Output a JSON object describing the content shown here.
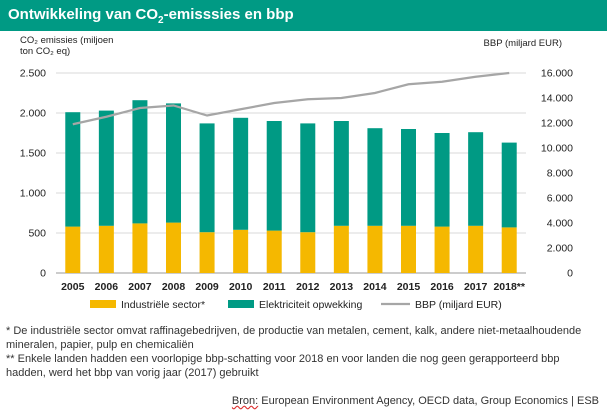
{
  "header": {
    "title_main": "Ontwikkeling van CO",
    "title_sub": "2",
    "title_rest": "-emisssies en bbp"
  },
  "axes": {
    "left_label_line1": "CO₂ emissies (miljoen",
    "left_label_line2": "ton CO₂ eq)",
    "right_label": "BBP (miljard EUR)"
  },
  "chart_data": {
    "type": "bar",
    "stacked": true,
    "categories": [
      "2005",
      "2006",
      "2007",
      "2008",
      "2009",
      "2010",
      "2011",
      "2012",
      "2013",
      "2014",
      "2015",
      "2016",
      "2017",
      "2018**"
    ],
    "series": [
      {
        "name": "Industriële sector*",
        "axis": "left",
        "color": "#f5b800",
        "values": [
          580,
          590,
          620,
          630,
          510,
          540,
          530,
          510,
          590,
          590,
          590,
          580,
          590,
          570
        ]
      },
      {
        "name": "Elektriciteit opwekking",
        "axis": "left",
        "color": "#009a84",
        "values": [
          1430,
          1440,
          1540,
          1490,
          1360,
          1400,
          1370,
          1360,
          1310,
          1220,
          1210,
          1170,
          1170,
          1060
        ]
      },
      {
        "name": "BBP (miljard EUR)",
        "axis": "right",
        "type": "line",
        "color": "#a6a6a6",
        "values": [
          11900,
          12500,
          13200,
          13400,
          12600,
          13100,
          13600,
          13900,
          14000,
          14400,
          15100,
          15300,
          15700,
          16000
        ]
      }
    ],
    "y_left": {
      "min": 0,
      "max": 2500,
      "ticks": [
        0,
        500,
        1000,
        1500,
        2000,
        2500
      ],
      "tick_labels": [
        "0",
        "500",
        "1.000",
        "1.500",
        "2.000",
        "2.500"
      ]
    },
    "y_right": {
      "min": 0,
      "max": 16000,
      "ticks": [
        0,
        2000,
        4000,
        6000,
        8000,
        10000,
        12000,
        14000,
        16000
      ],
      "tick_labels": [
        "0",
        "2.000",
        "4.000",
        "6.000",
        "8.000",
        "10.000",
        "12.000",
        "14.000",
        "16.000"
      ]
    },
    "grid": true,
    "legend_position": "bottom"
  },
  "footnotes": {
    "note1": "*   De industriële sector omvat raffinagebedrijven, de productie van metalen, cement, kalk, andere niet-metaalhoudende mineralen, papier, pulp en chemicaliën",
    "note2": "**   Enkele landen hadden een voorlopige bbp-schatting voor 2018 en voor landen die nog geen gerapporteerd bbp hadden, werd het bbp van vorig jaar (2017) gebruikt"
  },
  "source": {
    "prefix": "Bron:",
    "text": " European Environment Agency, OECD data, Group Economics | ESB"
  }
}
